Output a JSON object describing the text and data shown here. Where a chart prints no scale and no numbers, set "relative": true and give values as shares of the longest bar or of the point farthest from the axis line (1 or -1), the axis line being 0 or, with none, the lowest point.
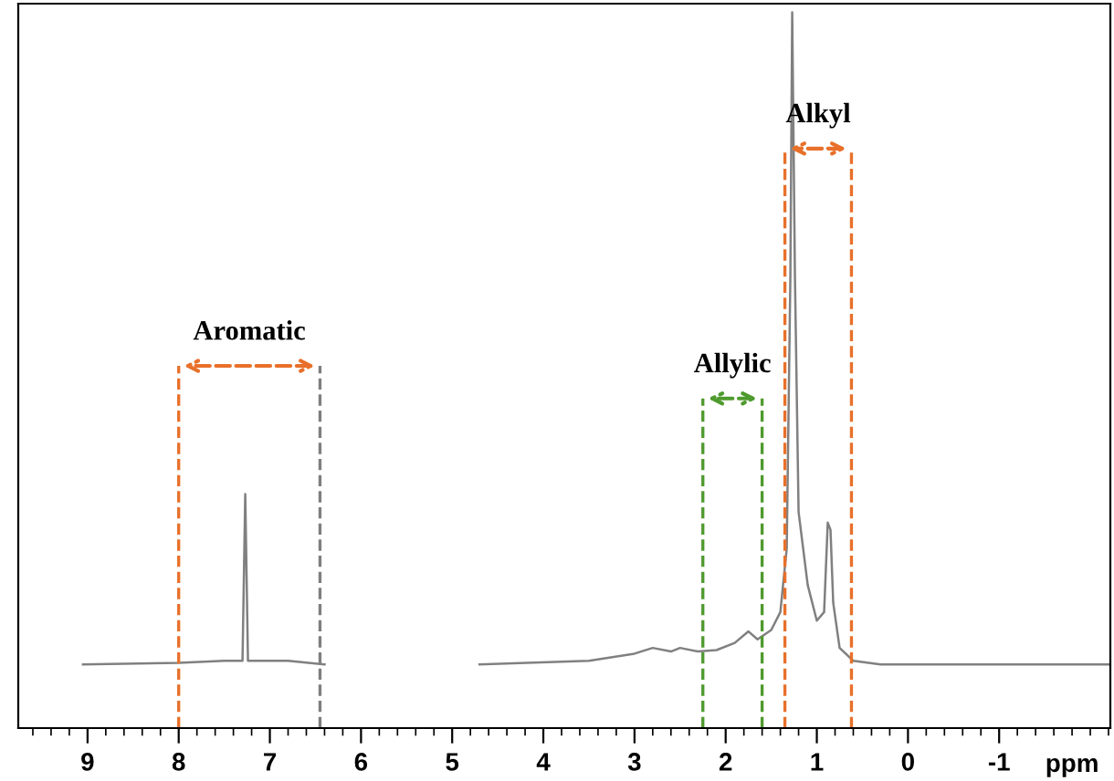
{
  "chart_data": {
    "type": "line",
    "relative": true,
    "xlabel": "ppm",
    "xlim": [
      9.76,
      -2.22
    ],
    "xticks": [
      9,
      8,
      7,
      6,
      5,
      4,
      3,
      2,
      1,
      0,
      {
        "value": -1,
        "label": "-1"
      }
    ],
    "grid": false,
    "legend": false,
    "marker": "none",
    "line_style": "solid",
    "series": [
      {
        "color": "#808080",
        "x": [
          9.05,
          8.0,
          7.5,
          7.3,
          7.27,
          7.24,
          6.8,
          6.4,
          5.5,
          4.7,
          3.5,
          3.0,
          2.8,
          2.6,
          2.5,
          2.3,
          2.1,
          1.9,
          1.75,
          1.65,
          1.5,
          1.4,
          1.33,
          1.29,
          1.27,
          1.24,
          1.2,
          1.1,
          1.0,
          0.92,
          0.88,
          0.85,
          0.82,
          0.75,
          0.6,
          0.3,
          -2.2
        ],
        "values": [
          0.089,
          0.091,
          0.094,
          0.094,
          0.327,
          0.094,
          0.094,
          0.089,
          null,
          0.089,
          0.094,
          0.104,
          0.112,
          0.107,
          0.112,
          0.107,
          0.109,
          0.119,
          0.135,
          0.124,
          0.137,
          0.162,
          0.251,
          0.632,
          1.0,
          0.632,
          0.302,
          0.2,
          0.15,
          0.162,
          0.287,
          0.277,
          0.175,
          0.112,
          0.094,
          0.089,
          0.089
        ]
      }
    ],
    "ref_lines": [
      {
        "axis": "x",
        "value": 8.0,
        "color": "#e8702a",
        "line_style": "dashed"
      },
      {
        "axis": "x",
        "value": 6.45,
        "color": "#7f7f7f",
        "line_style": "dashed"
      },
      {
        "axis": "x",
        "value": 2.25,
        "color": "#4f9a2e",
        "line_style": "dashed"
      },
      {
        "axis": "x",
        "value": 1.6,
        "color": "#4f9a2e",
        "line_style": "dashed"
      },
      {
        "axis": "x",
        "value": 1.35,
        "color": "#e8702a",
        "line_style": "dashed"
      },
      {
        "axis": "x",
        "value": 0.62,
        "color": "#e8702a",
        "line_style": "dashed"
      }
    ],
    "annotations": [
      "Aromatic",
      "Allylic",
      "Alkyl"
    ]
  }
}
